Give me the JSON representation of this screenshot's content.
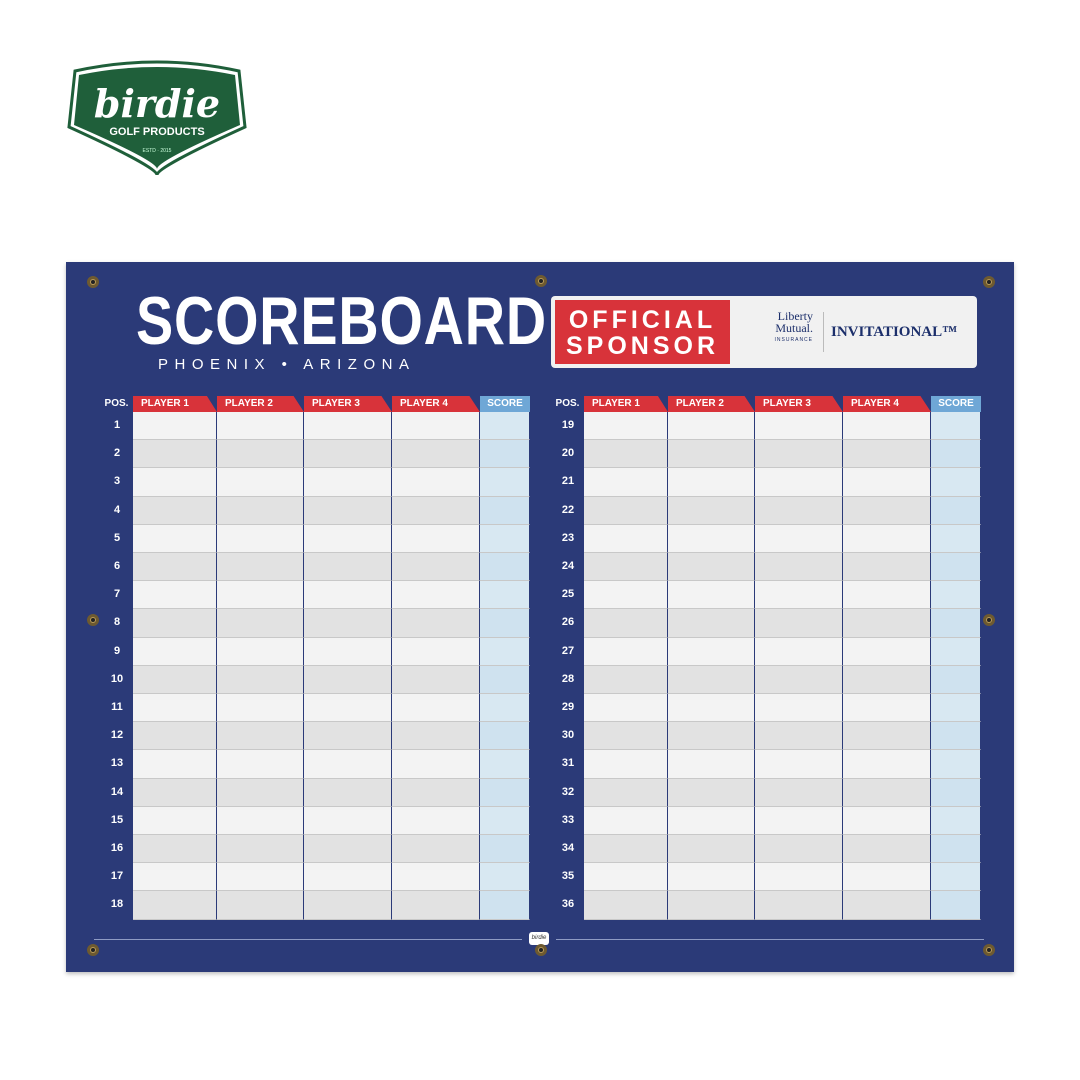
{
  "brand": {
    "logo_word": "birdie",
    "logo_tagline": "GOLF PRODUCTS",
    "logo_estd": "ESTD · 2015",
    "logo_color": "#1f5f3a"
  },
  "banner": {
    "title": "SCOREBOARD",
    "subtitle": "PHOENIX • ARIZONA",
    "bg_color": "#2b3a78",
    "sponsor": {
      "label_line1": "OFFICIAL",
      "label_line2": "SPONSOR",
      "company_line1": "Liberty",
      "company_line2": "Mutual.",
      "company_line3": "INSURANCE",
      "event": "INVITATIONAL™",
      "accent": "#d8333a"
    }
  },
  "tables": [
    {
      "headers": [
        "POS.",
        "PLAYER 1",
        "PLAYER 2",
        "PLAYER 3",
        "PLAYER 4",
        "SCORE"
      ],
      "positions": [
        "1",
        "2",
        "3",
        "4",
        "5",
        "6",
        "7",
        "8",
        "9",
        "10",
        "11",
        "12",
        "13",
        "14",
        "15",
        "16",
        "17",
        "18"
      ]
    },
    {
      "headers": [
        "POS.",
        "PLAYER 1",
        "PLAYER 2",
        "PLAYER 3",
        "PLAYER 4",
        "SCORE"
      ],
      "positions": [
        "19",
        "20",
        "21",
        "22",
        "23",
        "24",
        "25",
        "26",
        "27",
        "28",
        "29",
        "30",
        "31",
        "32",
        "33",
        "34",
        "35",
        "36"
      ]
    }
  ],
  "footer_logo": "birdie",
  "colors": {
    "header_red": "#d8333a",
    "score_blue": "#6fa7d6",
    "score_cell": "#d8e8f2",
    "row_light": "#f3f3f3",
    "row_dark": "#e2e2e2"
  }
}
